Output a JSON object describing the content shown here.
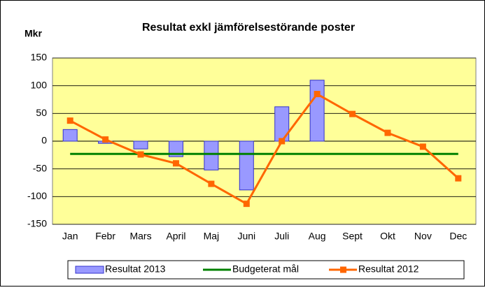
{
  "chart_data": {
    "type": "bar_line",
    "title": "Resultat  exkl jämförelsestörande  poster",
    "y_label": "Mkr",
    "categories": [
      "Jan",
      "Febr",
      "Mars",
      "April",
      "Maj",
      "Juni",
      "Juli",
      "Aug",
      "Sept",
      "Okt",
      "Nov",
      "Dec"
    ],
    "series": [
      {
        "name": "Resultat 2013",
        "type": "bar",
        "color": "#9999ff",
        "values": [
          21,
          -4,
          -14,
          -28,
          -52,
          -88,
          62,
          110,
          null,
          null,
          null,
          null
        ]
      },
      {
        "name": "Budgeterat mål",
        "type": "line",
        "color": "#008000",
        "values": [
          -23,
          -23,
          -23,
          -23,
          -23,
          -23,
          -23,
          -23,
          -23,
          -23,
          -23,
          -23
        ]
      },
      {
        "name": "Resultat 2012",
        "type": "line",
        "color": "#ff6600",
        "marker": "square",
        "values": [
          37,
          3,
          -24,
          -40,
          -77,
          -113,
          0,
          85,
          49,
          15,
          -10,
          -67
        ]
      }
    ],
    "ylim": [
      -150,
      150
    ],
    "yticks": [
      -150,
      -100,
      -50,
      0,
      50,
      100,
      150
    ],
    "grid": true,
    "legend": "bottom"
  }
}
